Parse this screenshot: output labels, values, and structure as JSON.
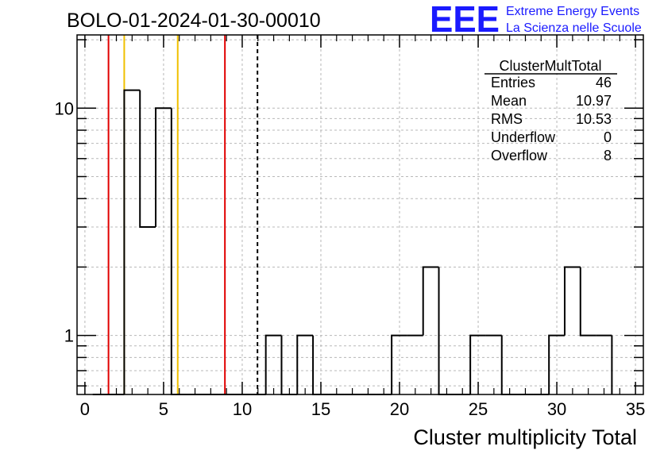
{
  "chart_data": {
    "type": "bar",
    "title": "BOLO-01-2024-01-30-00010",
    "xlabel": "Cluster multiplicity Total",
    "ylabel": "",
    "xlim": [
      -0.5,
      35.5
    ],
    "ylim": [
      0.55,
      21
    ],
    "yscale": "log",
    "grid": true,
    "x_ticks": [
      0,
      5,
      10,
      15,
      20,
      25,
      30,
      35
    ],
    "y_ticks": [
      1,
      10
    ],
    "bin_edges": [
      0.5,
      1.5,
      2.5,
      3.5,
      4.5,
      5.5,
      6.5,
      7.5,
      8.5,
      9.5,
      10.5,
      11.5,
      12.5,
      13.5,
      14.5,
      15.5,
      16.5,
      17.5,
      18.5,
      19.5,
      20.5,
      21.5,
      22.5,
      23.5,
      24.5,
      25.5,
      26.5,
      27.5,
      28.5,
      29.5,
      30.5,
      31.5,
      32.5,
      33.5
    ],
    "counts": [
      0,
      0,
      12,
      3,
      10,
      0,
      0,
      0,
      0,
      0,
      0,
      1,
      0,
      1,
      0,
      0,
      0,
      0,
      0,
      1,
      1,
      2,
      0,
      0,
      1,
      1,
      0,
      0,
      0,
      1,
      2,
      1,
      1
    ],
    "reference_lines": [
      {
        "x": 1.5,
        "color": "#e00000",
        "style": "solid"
      },
      {
        "x": 2.5,
        "color": "#f0c000",
        "style": "solid"
      },
      {
        "x": 5.9,
        "color": "#f0c000",
        "style": "solid"
      },
      {
        "x": 8.9,
        "color": "#e00000",
        "style": "solid"
      },
      {
        "x": 10.97,
        "color": "#000000",
        "style": "dashed"
      }
    ],
    "legend_placement": "top-right",
    "stats": {
      "name": "ClusterMultTotal",
      "rows": [
        {
          "label": "Entries",
          "value": "46"
        },
        {
          "label": "Mean",
          "value": "10.97"
        },
        {
          "label": "RMS",
          "value": "10.53"
        },
        {
          "label": "Underflow",
          "value": "0"
        },
        {
          "label": "Overflow",
          "value": "8"
        }
      ]
    }
  },
  "logo": {
    "text": "EEE",
    "line1": "Extreme Energy Events",
    "line2": "La Scienza nelle Scuole",
    "color": "#1a1aff"
  }
}
